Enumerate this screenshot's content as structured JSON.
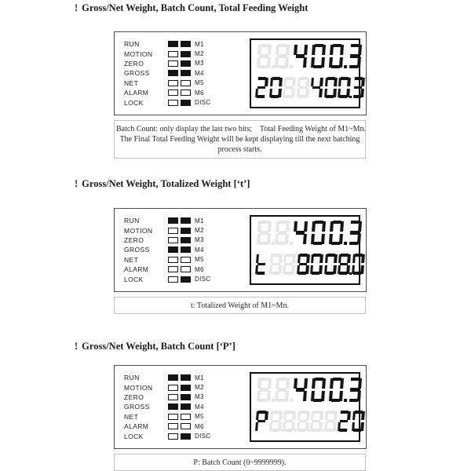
{
  "page": {
    "heading_marker": "!",
    "background": "#ffffff"
  },
  "display_colors": {
    "lit": "#141414",
    "ghost": "#e5e5e5"
  },
  "led_panel": {
    "rows": [
      {
        "label": "RUN",
        "led1": "on",
        "led2": "on",
        "tag": "M1"
      },
      {
        "label": "MOTION",
        "led1": "off",
        "led2": "on",
        "tag": "M2"
      },
      {
        "label": "ZERO",
        "led1": "off",
        "led2": "on",
        "tag": "M3"
      },
      {
        "label": "GROSS",
        "led1": "on",
        "led2": "on",
        "tag": "M4"
      },
      {
        "label": "NET",
        "led1": "off",
        "led2": "off",
        "tag": "M5"
      },
      {
        "label": "ALARM",
        "led1": "off",
        "led2": "off",
        "tag": "M6"
      },
      {
        "label": "LOCK",
        "led1": "off",
        "led2": "on",
        "tag": "DISC"
      }
    ]
  },
  "sections": [
    {
      "heading": "Gross/Net Weight, Batch Count, Total Feeding Weight",
      "display": {
        "top_reading": "400.3",
        "bottom_reading": "20 400.3",
        "top_row": [
          {
            "ch": "8",
            "ghost": true,
            "dp": true
          },
          {
            "ch": "8",
            "ghost": true,
            "dp": true
          },
          {
            "ch": "4"
          },
          {
            "ch": "0"
          },
          {
            "ch": "0",
            "dp": true
          },
          {
            "ch": "3"
          }
        ],
        "bottom_row": [
          {
            "ch": "2"
          },
          {
            "ch": "0"
          },
          {
            "ch": "8",
            "ghost": true
          },
          {
            "ch": "8",
            "ghost": true
          },
          {
            "ch": "4"
          },
          {
            "ch": "0"
          },
          {
            "ch": "0",
            "dp": true
          },
          {
            "ch": "3"
          }
        ]
      },
      "caption_lines": [
        "Batch Count: only display the last two bits;    Total Feeding Weight of M1~Mn.",
        "The Final Total Feeding Weight will be kept displaying till the next batching",
        "process starts."
      ]
    },
    {
      "heading": "Gross/Net Weight, Totalized Weight [‘t’]",
      "display": {
        "top_reading": "400.3",
        "bottom_reading": "t 8008.0",
        "top_row": [
          {
            "ch": "8",
            "ghost": true,
            "dp": true
          },
          {
            "ch": "8",
            "ghost": true,
            "dp": true
          },
          {
            "ch": "4"
          },
          {
            "ch": "0"
          },
          {
            "ch": "0",
            "dp": true
          },
          {
            "ch": "3"
          }
        ],
        "bottom_row": [
          {
            "ch": "t"
          },
          {
            "ch": "8",
            "ghost": true
          },
          {
            "ch": "8",
            "ghost": true
          },
          {
            "ch": "8"
          },
          {
            "ch": "0"
          },
          {
            "ch": "0"
          },
          {
            "ch": "8",
            "dp": true
          },
          {
            "ch": "0"
          }
        ]
      },
      "caption_lines": [
        "t: Totalized Weight of M1~Mn."
      ]
    },
    {
      "heading": "Gross/Net Weight, Batch Count [‘P’]",
      "display": {
        "top_reading": "400.3",
        "bottom_reading": "P 20",
        "top_row": [
          {
            "ch": "8",
            "ghost": true,
            "dp": true
          },
          {
            "ch": "8",
            "ghost": true,
            "dp": true
          },
          {
            "ch": "4"
          },
          {
            "ch": "0"
          },
          {
            "ch": "0",
            "dp": true
          },
          {
            "ch": "3"
          }
        ],
        "bottom_row": [
          {
            "ch": "P"
          },
          {
            "ch": "8",
            "ghost": true,
            "dp": true
          },
          {
            "ch": "8",
            "ghost": true,
            "dp": true
          },
          {
            "ch": "8",
            "ghost": true,
            "dp": true
          },
          {
            "ch": "8",
            "ghost": true,
            "dp": true
          },
          {
            "ch": "8",
            "ghost": true,
            "dp": true
          },
          {
            "ch": "2"
          },
          {
            "ch": "0"
          }
        ]
      },
      "caption_lines": [
        "P: Batch Count (0~9999999)."
      ]
    }
  ]
}
